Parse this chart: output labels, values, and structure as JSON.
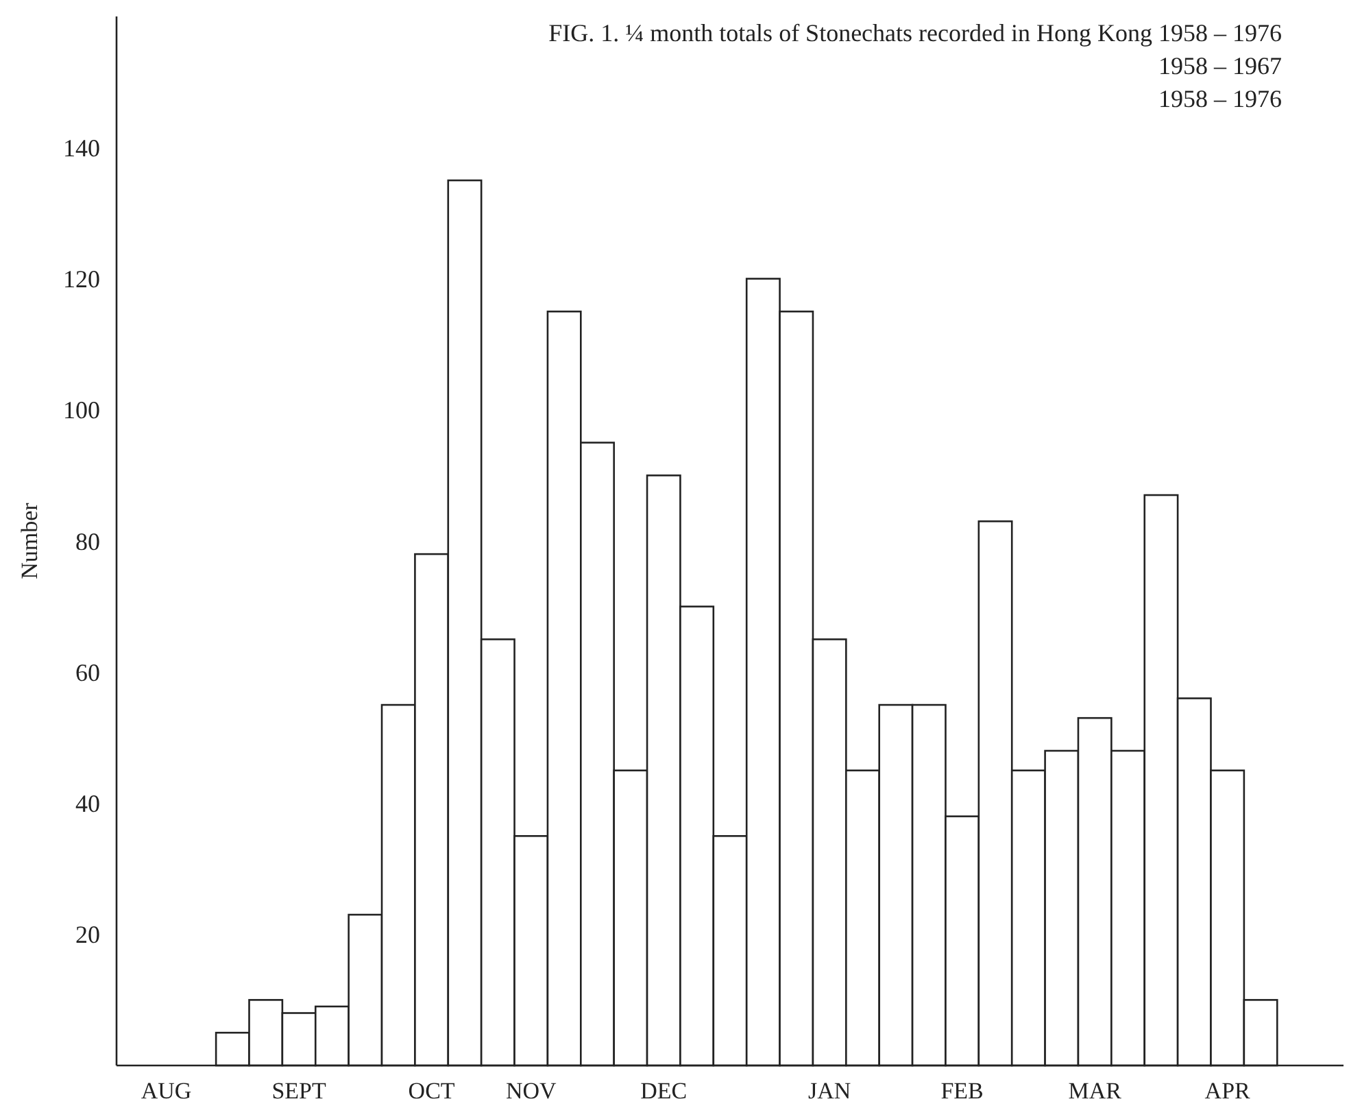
{
  "chart_data": {
    "type": "bar",
    "title": "FIG. 1.  ¼ month totals of Stonechats recorded in Hong Kong 1958 – 1976",
    "ylabel": "Number",
    "categories": [
      null,
      "AUG",
      null,
      null,
      null,
      "SEPT",
      null,
      null,
      null,
      "OCT",
      null,
      null,
      "NOV",
      null,
      null,
      null,
      "DEC",
      null,
      null,
      null,
      null,
      "JAN",
      null,
      null,
      null,
      "FEB",
      null,
      null,
      null,
      "MAR",
      null,
      null,
      null,
      "APR",
      null,
      null,
      null
    ],
    "values": [
      null,
      null,
      null,
      5,
      10,
      8,
      9,
      23,
      55,
      78,
      135,
      65,
      35,
      115,
      95,
      45,
      90,
      70,
      35,
      120,
      115,
      65,
      45,
      55,
      55,
      38,
      83,
      45,
      48,
      53,
      48,
      87,
      56,
      45,
      10,
      null,
      null
    ],
    "color": "#ffffff",
    "ylim": [
      0,
      160
    ],
    "yticks": [
      20,
      40,
      60,
      80,
      100,
      120,
      140
    ],
    "grid": false,
    "annotations": [
      "1958 – 1967",
      "1958 – 1976"
    ]
  }
}
